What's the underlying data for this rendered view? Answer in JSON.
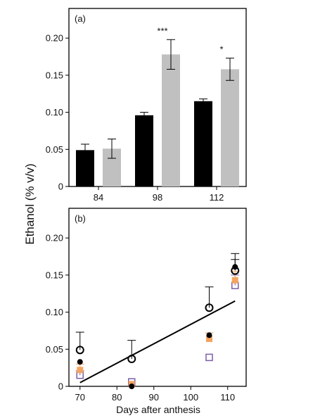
{
  "chart_data": [
    {
      "type": "bar",
      "panel_label": "(a)",
      "categories": [
        "84",
        "98",
        "112"
      ],
      "series": [
        {
          "values": [
            0.049,
            0.096,
            0.115
          ],
          "errors": [
            0.008,
            0.004,
            0.003
          ],
          "color": "#000000"
        },
        {
          "values": [
            0.051,
            0.178,
            0.158
          ],
          "errors": [
            0.013,
            0.02,
            0.015
          ],
          "color": "#c0c0c0"
        }
      ],
      "significance": [
        "",
        "***",
        "*"
      ],
      "yticks": [
        "0",
        "0.05",
        "0.10",
        "0.15",
        "0.20"
      ],
      "ylim": [
        0,
        0.24
      ]
    },
    {
      "type": "scatter",
      "panel_label": "(b)",
      "xlim": [
        67,
        115
      ],
      "ylim": [
        0,
        0.24
      ],
      "xticks": [
        "70",
        "80",
        "90",
        "100",
        "110"
      ],
      "yticks": [
        "0",
        "0.05",
        "0.10",
        "0.15",
        "0.20"
      ],
      "series": [
        {
          "marker": "open-circle",
          "color": "#000000",
          "points": [
            [
              70,
              0.049,
              0.024
            ],
            [
              84,
              0.037,
              0.025
            ],
            [
              105,
              0.106,
              0.028
            ],
            [
              112,
              0.156,
              0.015
            ]
          ]
        },
        {
          "marker": "filled-circle",
          "color": "#000000",
          "points": [
            [
              70,
              0.033,
              0
            ],
            [
              84,
              0.0,
              0
            ],
            [
              105,
              0.069,
              0
            ],
            [
              112,
              0.161,
              0.018
            ]
          ]
        },
        {
          "marker": "filled-square",
          "color": "#f4a460",
          "points": [
            [
              70,
              0.022,
              0.008
            ],
            [
              84,
              0.003,
              0
            ],
            [
              105,
              0.064,
              0.008
            ],
            [
              112,
              0.143,
              0.012
            ]
          ]
        },
        {
          "marker": "open-square",
          "color": "#7b5ea7",
          "points": [
            [
              70,
              0.015,
              0.006
            ],
            [
              84,
              0.006,
              0
            ],
            [
              105,
              0.039,
              0
            ],
            [
              112,
              0.136,
              0.014
            ]
          ]
        }
      ],
      "regression_line": [
        [
          70,
          0.005
        ],
        [
          112,
          0.115
        ]
      ]
    }
  ],
  "axes": {
    "ylabel": "Ethanol (% v/v)",
    "xlabel": "Days after anthesis"
  }
}
